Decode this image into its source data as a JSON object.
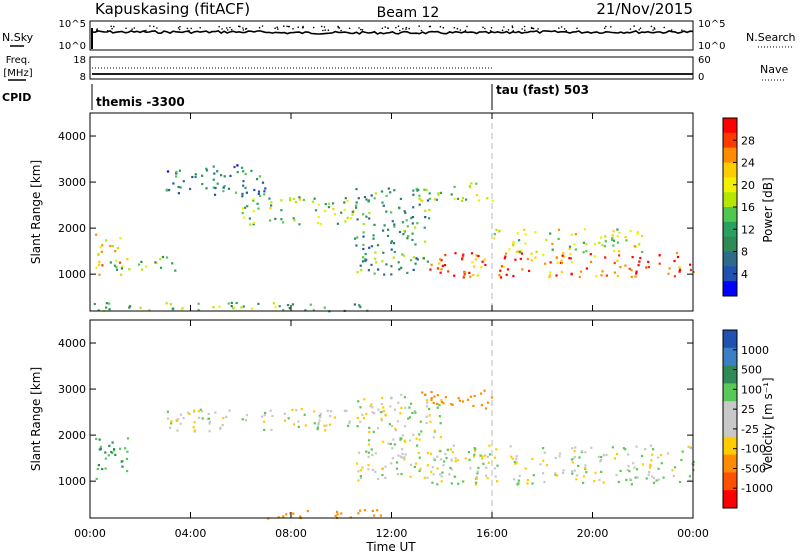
{
  "header": {
    "station": "Kapuskasing (fitACF)",
    "beam": "Beam 12",
    "date": "21/Nov/2015"
  },
  "panels": {
    "nsky": {
      "label": "N.Sky",
      "right_label": "N.Search",
      "ticks": [
        "10^5",
        "10^0"
      ],
      "right_ticks": [
        "10^5",
        "10^0"
      ]
    },
    "freq": {
      "label_line1": "Freq.",
      "label_line2": "[MHz]",
      "right_label": "Nave",
      "ticks": [
        "18",
        "8"
      ],
      "right_ticks": [
        "60",
        "0"
      ]
    },
    "cpid": {
      "label": "CPID",
      "programs": [
        "themis -3300",
        "tau (fast) 503"
      ]
    }
  },
  "chart_data": [
    {
      "type": "heatmap",
      "title": "Power",
      "xlabel": "Time UT",
      "ylabel": "Slant Range [km]",
      "x_ticks": [
        "00:00",
        "04:00",
        "08:00",
        "12:00",
        "16:00",
        "20:00",
        "00:00"
      ],
      "y_ticks": [
        "1000",
        "2000",
        "3000",
        "4000"
      ],
      "ylim": [
        200,
        4500
      ],
      "colorbar": {
        "label": "Power [dB]",
        "tick_labels": [
          "28",
          "24",
          "20",
          "16",
          "12",
          "8",
          "4"
        ],
        "colors": [
          "#ff0000",
          "#ff3a00",
          "#ff8c00",
          "#ffcc00",
          "#f0f000",
          "#b4e600",
          "#50c850",
          "#28a060",
          "#2e8b57",
          "#2e6b8b",
          "#2050b0",
          "#0000ff"
        ]
      },
      "regions": [
        {
          "t0": 0.2,
          "t1": 1.2,
          "r0": 1000,
          "r1": 1900,
          "power": 22
        },
        {
          "t0": 0.5,
          "t1": 3.5,
          "r0": 1100,
          "r1": 1400,
          "power": 14
        },
        {
          "t0": 3.0,
          "t1": 7.0,
          "r0": 2700,
          "r1": 3400,
          "power": 8
        },
        {
          "t0": 6.0,
          "t1": 10.5,
          "r0": 2100,
          "r1": 2700,
          "power": 14
        },
        {
          "t0": 10.5,
          "t1": 13.5,
          "r0": 1000,
          "r1": 2900,
          "power": 10
        },
        {
          "t0": 13.0,
          "t1": 16.0,
          "r0": 2600,
          "r1": 3000,
          "power": 16
        },
        {
          "t0": 13.5,
          "t1": 24.0,
          "r0": 950,
          "r1": 1500,
          "power": 26
        },
        {
          "t0": 16.0,
          "t1": 22.0,
          "r0": 1500,
          "r1": 2000,
          "power": 18
        },
        {
          "t0": 0.0,
          "t1": 11.0,
          "r0": 200,
          "r1": 400,
          "power": 12
        }
      ]
    },
    {
      "type": "heatmap",
      "title": "Velocity",
      "xlabel": "Time UT",
      "ylabel": "Slant Range [km]",
      "x_ticks": [
        "00:00",
        "04:00",
        "08:00",
        "12:00",
        "16:00",
        "20:00",
        "00:00"
      ],
      "y_ticks": [
        "1000",
        "2000",
        "3000",
        "4000"
      ],
      "ylim": [
        200,
        4500
      ],
      "colorbar": {
        "label": "Velocity [m s⁻¹]",
        "tick_labels": [
          "1000",
          "500",
          "100",
          "25",
          "-25",
          "-100",
          "-500",
          "-1000"
        ],
        "colors": [
          "#2050b0",
          "#3c7fc4",
          "#2e8b57",
          "#58c858",
          "#c8c8c8",
          "#c8c8c8",
          "#ffcc00",
          "#ff8c00",
          "#ff5000",
          "#ff0000"
        ]
      },
      "regions": [
        {
          "t0": 0.2,
          "t1": 1.5,
          "r0": 1000,
          "r1": 2000,
          "velocity": 100
        },
        {
          "t0": 3.0,
          "t1": 10.5,
          "r0": 2100,
          "r1": 2600,
          "velocity": 0
        },
        {
          "t0": 10.5,
          "t1": 14.0,
          "r0": 1000,
          "r1": 2900,
          "velocity": 0
        },
        {
          "t0": 13.5,
          "t1": 24.0,
          "r0": 950,
          "r1": 1800,
          "velocity": 0
        },
        {
          "t0": 13.0,
          "t1": 16.0,
          "r0": 2600,
          "r1": 3000,
          "velocity": -300
        },
        {
          "t0": 7.0,
          "t1": 12.0,
          "r0": 200,
          "r1": 400,
          "velocity": -400
        }
      ]
    }
  ]
}
